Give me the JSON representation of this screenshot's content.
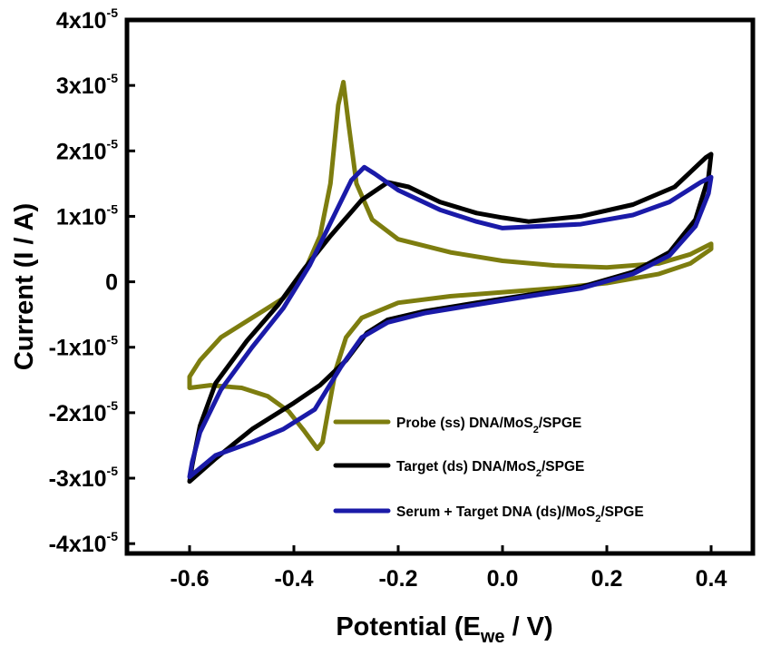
{
  "chart_data": {
    "type": "line",
    "title": "",
    "xlabel": "Potential (E",
    "xlabel_sub": "we",
    "xlabel_end": " / V)",
    "ylabel": "Current (I / A)",
    "xlim": [
      -0.72,
      0.48
    ],
    "ylim": [
      -4.15e-05,
      4e-05
    ],
    "x_ticks": [
      {
        "value": -0.6,
        "label": "-0.6"
      },
      {
        "value": -0.4,
        "label": "-0.4"
      },
      {
        "value": -0.2,
        "label": "-0.2"
      },
      {
        "value": 0.0,
        "label": "0.0"
      },
      {
        "value": 0.2,
        "label": "0.2"
      },
      {
        "value": 0.4,
        "label": "0.4"
      }
    ],
    "y_ticks": [
      {
        "value": 4e-05,
        "base": "4x10",
        "exp": "-5"
      },
      {
        "value": 3e-05,
        "base": "3x10",
        "exp": "-5"
      },
      {
        "value": 2e-05,
        "base": "2x10",
        "exp": "-5"
      },
      {
        "value": 1e-05,
        "base": "1x10",
        "exp": "-5"
      },
      {
        "value": 0,
        "base": "0",
        "exp": ""
      },
      {
        "value": -1e-05,
        "base": "-1x10",
        "exp": "-5"
      },
      {
        "value": -2e-05,
        "base": "-2x10",
        "exp": "-5"
      },
      {
        "value": -3e-05,
        "base": "-3x10",
        "exp": "-5"
      },
      {
        "value": -4e-05,
        "base": "-4x10",
        "exp": "-5"
      }
    ],
    "legend_position": "bottom-right",
    "series": [
      {
        "name": "Probe (ss) DNA/MoS2/SPGE",
        "label_parts": [
          "Probe (ss) DNA/MoS",
          "2",
          "/SPGE"
        ],
        "color": "#7d7d0f",
        "points": [
          [
            -0.6,
            -1.62e-05
          ],
          [
            -0.56,
            -1.58e-05
          ],
          [
            -0.5,
            -1.62e-05
          ],
          [
            -0.45,
            -1.75e-05
          ],
          [
            -0.41,
            -1.98e-05
          ],
          [
            -0.38,
            -2.28e-05
          ],
          [
            -0.355,
            -2.55e-05
          ],
          [
            -0.345,
            -2.45e-05
          ],
          [
            -0.335,
            -2e-05
          ],
          [
            -0.32,
            -1.35e-05
          ],
          [
            -0.3,
            -8.5e-06
          ],
          [
            -0.27,
            -5.5e-06
          ],
          [
            -0.2,
            -3.2e-06
          ],
          [
            -0.1,
            -2.2e-06
          ],
          [
            0.0,
            -1.6e-06
          ],
          [
            0.1,
            -1e-06
          ],
          [
            0.2,
            -2e-07
          ],
          [
            0.3,
            1.2e-06
          ],
          [
            0.36,
            2.8e-06
          ],
          [
            0.4,
            5e-06
          ],
          [
            0.4,
            5.8e-06
          ],
          [
            0.36,
            4.2e-06
          ],
          [
            0.3,
            2.8e-06
          ],
          [
            0.2,
            2.2e-06
          ],
          [
            0.1,
            2.5e-06
          ],
          [
            0.0,
            3.2e-06
          ],
          [
            -0.1,
            4.5e-06
          ],
          [
            -0.2,
            6.5e-06
          ],
          [
            -0.25,
            9.5e-06
          ],
          [
            -0.28,
            1.5e-05
          ],
          [
            -0.295,
            2.4e-05
          ],
          [
            -0.305,
            3.05e-05
          ],
          [
            -0.315,
            2.7e-05
          ],
          [
            -0.33,
            1.5e-05
          ],
          [
            -0.35,
            7e-06
          ],
          [
            -0.38,
            1.5e-06
          ],
          [
            -0.42,
            -2.5e-06
          ],
          [
            -0.48,
            -5.5e-06
          ],
          [
            -0.54,
            -8.5e-06
          ],
          [
            -0.58,
            -1.2e-05
          ],
          [
            -0.6,
            -1.45e-05
          ],
          [
            -0.6,
            -1.62e-05
          ]
        ]
      },
      {
        "name": "Target (ds) DNA/MoS2/SPGE",
        "label_parts": [
          "Target (ds) DNA/MoS",
          "2",
          "/SPGE"
        ],
        "color": "#000000",
        "points": [
          [
            -0.6,
            -3.05e-05
          ],
          [
            -0.55,
            -2.7e-05
          ],
          [
            -0.48,
            -2.25e-05
          ],
          [
            -0.4,
            -1.85e-05
          ],
          [
            -0.35,
            -1.58e-05
          ],
          [
            -0.3,
            -1.2e-05
          ],
          [
            -0.26,
            -7.8e-06
          ],
          [
            -0.22,
            -5.8e-06
          ],
          [
            -0.15,
            -4.5e-06
          ],
          [
            -0.05,
            -3.2e-06
          ],
          [
            0.05,
            -2e-06
          ],
          [
            0.15,
            -8e-07
          ],
          [
            0.25,
            1.5e-06
          ],
          [
            0.32,
            4.5e-06
          ],
          [
            0.37,
            9.5e-06
          ],
          [
            0.395,
            1.6e-05
          ],
          [
            0.4,
            1.95e-05
          ],
          [
            0.39,
            1.9e-05
          ],
          [
            0.33,
            1.45e-05
          ],
          [
            0.25,
            1.18e-05
          ],
          [
            0.15,
            1e-05
          ],
          [
            0.05,
            9.2e-06
          ],
          [
            0.0,
            9.8e-06
          ],
          [
            -0.05,
            1.05e-05
          ],
          [
            -0.12,
            1.22e-05
          ],
          [
            -0.18,
            1.45e-05
          ],
          [
            -0.22,
            1.52e-05
          ],
          [
            -0.27,
            1.25e-05
          ],
          [
            -0.33,
            7e-06
          ],
          [
            -0.38,
            2e-06
          ],
          [
            -0.43,
            -3.5e-06
          ],
          [
            -0.49,
            -9e-06
          ],
          [
            -0.55,
            -1.55e-05
          ],
          [
            -0.58,
            -2.2e-05
          ],
          [
            -0.595,
            -2.8e-05
          ],
          [
            -0.6,
            -3.05e-05
          ]
        ]
      },
      {
        "name": "Serum + Target DNA (ds)/MoS2/SPGE",
        "label_parts": [
          "Serum + Target DNA (ds)/MoS",
          "2",
          "/SPGE"
        ],
        "color": "#1a1aa8",
        "points": [
          [
            -0.6,
            -2.98e-05
          ],
          [
            -0.55,
            -2.65e-05
          ],
          [
            -0.48,
            -2.45e-05
          ],
          [
            -0.42,
            -2.25e-05
          ],
          [
            -0.36,
            -1.95e-05
          ],
          [
            -0.31,
            -1.3e-05
          ],
          [
            -0.27,
            -8.5e-06
          ],
          [
            -0.22,
            -6.2e-06
          ],
          [
            -0.15,
            -4.8e-06
          ],
          [
            -0.05,
            -3.5e-06
          ],
          [
            0.05,
            -2.2e-06
          ],
          [
            0.15,
            -1e-06
          ],
          [
            0.25,
            1.2e-06
          ],
          [
            0.32,
            4e-06
          ],
          [
            0.37,
            8.5e-06
          ],
          [
            0.395,
            1.35e-05
          ],
          [
            0.4,
            1.6e-05
          ],
          [
            0.38,
            1.52e-05
          ],
          [
            0.32,
            1.22e-05
          ],
          [
            0.25,
            1.02e-05
          ],
          [
            0.15,
            8.8e-06
          ],
          [
            0.0,
            8.2e-06
          ],
          [
            -0.05,
            9.2e-06
          ],
          [
            -0.12,
            1.1e-05
          ],
          [
            -0.2,
            1.4e-05
          ],
          [
            -0.245,
            1.65e-05
          ],
          [
            -0.265,
            1.75e-05
          ],
          [
            -0.29,
            1.55e-05
          ],
          [
            -0.33,
            9e-06
          ],
          [
            -0.37,
            2.5e-06
          ],
          [
            -0.42,
            -4e-06
          ],
          [
            -0.48,
            -1e-05
          ],
          [
            -0.54,
            -1.65e-05
          ],
          [
            -0.58,
            -2.3e-05
          ],
          [
            -0.595,
            -2.75e-05
          ],
          [
            -0.6,
            -2.98e-05
          ]
        ]
      }
    ]
  }
}
